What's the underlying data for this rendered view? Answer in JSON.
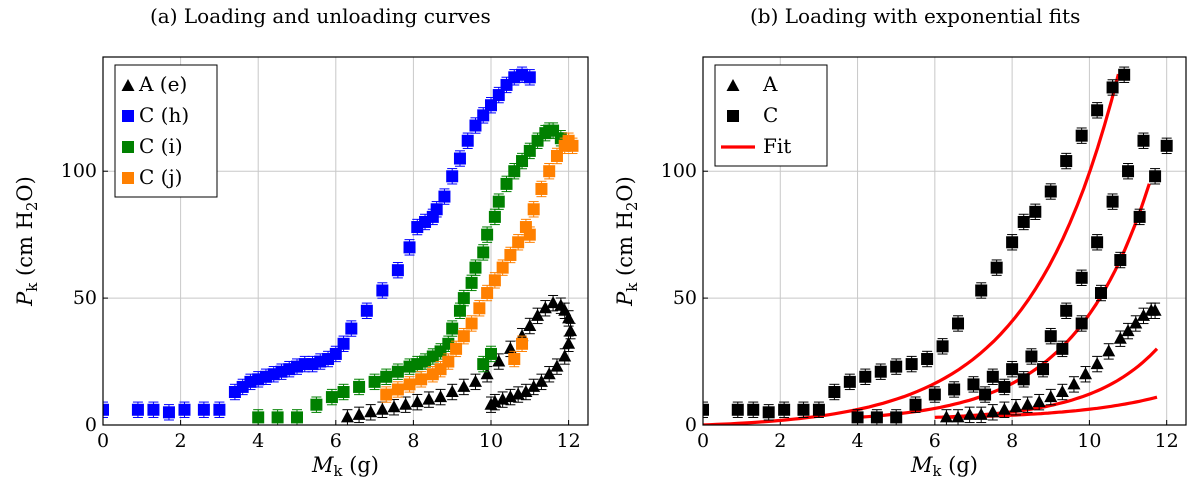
{
  "chart_data": [
    {
      "type": "scatter",
      "title": "(a) Loading and unloading curves",
      "xlabel": "M_k (g)",
      "ylabel": "P_k (cm H2O)",
      "xlim": [
        0,
        12.5
      ],
      "ylim": [
        0,
        145
      ],
      "xticks": [
        "0",
        "2",
        "4",
        "6",
        "8",
        "10",
        "12"
      ],
      "yticks": [
        "0",
        "50",
        "100"
      ],
      "grid": true,
      "error_bars": true,
      "legend_position": "top-left",
      "legend": [
        {
          "label": "A (e)",
          "marker": "triangle",
          "color": "#000000"
        },
        {
          "label": "C (h)",
          "marker": "square",
          "color": "#0000ff"
        },
        {
          "label": "C (i)",
          "marker": "square",
          "color": "#008000"
        },
        {
          "label": "C (j)",
          "marker": "square",
          "color": "#ff8000"
        }
      ],
      "series": [
        {
          "name": "A (e)",
          "marker": "triangle",
          "color": "#000000",
          "x": [
            6.3,
            6.6,
            6.9,
            7.2,
            7.5,
            7.8,
            8.1,
            8.4,
            8.7,
            9.0,
            9.3,
            9.6,
            9.9,
            10.2,
            10.5,
            10.8,
            11.0,
            11.2,
            11.4,
            11.6,
            11.8,
            11.9,
            12.0,
            12.05,
            12.0,
            11.9,
            11.7,
            11.5,
            11.3,
            11.1,
            10.9,
            10.7,
            10.5,
            10.3,
            10.1,
            10.0
          ],
          "y": [
            3,
            4,
            5,
            6,
            7,
            8,
            9,
            10,
            11,
            13,
            15,
            17,
            20,
            25,
            30,
            35,
            39,
            43,
            46,
            48,
            47,
            45,
            42,
            37,
            32,
            27,
            23,
            20,
            17,
            15,
            13,
            12,
            11,
            10,
            9,
            8
          ]
        },
        {
          "name": "C (h)",
          "marker": "square",
          "color": "#0000ff",
          "x": [
            0,
            0.9,
            1.3,
            1.7,
            2.1,
            2.6,
            3.0,
            3.4,
            3.6,
            3.8,
            4.0,
            4.2,
            4.4,
            4.6,
            4.8,
            5.0,
            5.2,
            5.4,
            5.6,
            5.8,
            6.0,
            6.2,
            6.4,
            6.8,
            7.2,
            7.6,
            7.9,
            8.1,
            8.3,
            8.5,
            8.6,
            8.8,
            9.0,
            9.2,
            9.4,
            9.6,
            9.8,
            10.0,
            10.2,
            10.4,
            10.6,
            10.8,
            11.0
          ],
          "y": [
            6,
            6,
            6,
            5,
            6,
            6,
            6,
            13,
            15,
            17,
            18,
            19,
            20,
            21,
            22,
            23,
            24,
            24,
            25,
            26,
            28,
            32,
            38,
            45,
            53,
            61,
            70,
            78,
            80,
            82,
            85,
            90,
            98,
            105,
            112,
            118,
            122,
            126,
            130,
            134,
            137,
            138,
            137
          ]
        },
        {
          "name": "C (i)",
          "marker": "square",
          "color": "#008000",
          "x": [
            4.0,
            4.5,
            5.0,
            5.5,
            5.9,
            6.2,
            6.6,
            7.0,
            7.3,
            7.6,
            7.9,
            8.1,
            8.3,
            8.5,
            8.7,
            8.9,
            9.0,
            9.2,
            9.3,
            9.5,
            9.6,
            9.8,
            9.9,
            10.1,
            10.2,
            10.4,
            10.6,
            10.8,
            11.0,
            11.2,
            11.4,
            11.5,
            11.6,
            11.8,
            10.0,
            9.8
          ],
          "y": [
            3,
            3,
            3,
            8,
            11,
            13,
            15,
            17,
            19,
            21,
            23,
            24,
            25,
            27,
            29,
            32,
            38,
            45,
            50,
            56,
            62,
            68,
            75,
            82,
            88,
            95,
            100,
            104,
            108,
            112,
            115,
            116,
            116,
            113,
            28,
            24
          ]
        },
        {
          "name": "C (j)",
          "marker": "square",
          "color": "#ff8000",
          "x": [
            7.3,
            7.6,
            7.9,
            8.2,
            8.5,
            8.7,
            8.9,
            9.1,
            9.3,
            9.5,
            9.7,
            9.9,
            10.1,
            10.3,
            10.5,
            10.7,
            10.9,
            11.1,
            11.3,
            11.5,
            11.7,
            11.9,
            12.0,
            12.1,
            10.6,
            10.8,
            11.0
          ],
          "y": [
            12,
            14,
            16,
            18,
            20,
            22,
            25,
            30,
            35,
            40,
            46,
            52,
            57,
            62,
            67,
            72,
            78,
            85,
            93,
            100,
            106,
            110,
            112,
            110,
            26,
            32,
            75
          ]
        }
      ]
    },
    {
      "type": "scatter",
      "title": "(b) Loading with exponential fits",
      "xlabel": "M_k (g)",
      "ylabel": "P_k (cm H2O)",
      "xlim": [
        0,
        12.5
      ],
      "ylim": [
        0,
        145
      ],
      "xticks": [
        "0",
        "2",
        "4",
        "6",
        "8",
        "10",
        "12"
      ],
      "yticks": [
        "0",
        "50",
        "100"
      ],
      "grid": true,
      "error_bars": true,
      "legend_position": "top-left",
      "legend": [
        {
          "label": "A",
          "marker": "triangle",
          "color": "#000000"
        },
        {
          "label": "C",
          "marker": "square",
          "color": "#000000"
        },
        {
          "label": "Fit",
          "marker": "line",
          "color": "#ff0000"
        }
      ],
      "series": [
        {
          "name": "A",
          "marker": "triangle",
          "color": "#000000",
          "x": [
            6.3,
            6.6,
            6.9,
            7.2,
            7.5,
            7.8,
            8.1,
            8.4,
            8.7,
            9.0,
            9.3,
            9.6,
            9.9,
            10.2,
            10.5,
            10.8,
            11.0,
            11.2,
            11.4,
            11.6,
            11.7
          ],
          "y": [
            3,
            3,
            4,
            4,
            5,
            6,
            7,
            8,
            9,
            11,
            13,
            16,
            20,
            24,
            29,
            34,
            37,
            40,
            43,
            45,
            45
          ]
        },
        {
          "name": "C",
          "marker": "square",
          "color": "#000000",
          "x": [
            0,
            0.9,
            1.3,
            1.7,
            2.1,
            2.6,
            3.0,
            3.4,
            3.8,
            4.2,
            4.6,
            5.0,
            5.4,
            5.8,
            6.2,
            6.6,
            7.2,
            7.6,
            8.0,
            8.3,
            8.6,
            9.0,
            9.4,
            9.8,
            10.2,
            10.6,
            10.9,
            4.0,
            4.5,
            5.0,
            5.5,
            6.0,
            6.5,
            7.0,
            7.5,
            8.0,
            8.5,
            9.0,
            9.4,
            9.8,
            10.2,
            10.6,
            11.0,
            11.4,
            7.3,
            7.8,
            8.3,
            8.8,
            9.3,
            9.8,
            10.3,
            10.8,
            11.3,
            11.7,
            12.0
          ],
          "y": [
            6,
            6,
            6,
            5,
            6,
            6,
            6,
            13,
            17,
            19,
            21,
            23,
            24,
            26,
            31,
            40,
            53,
            62,
            72,
            80,
            84,
            92,
            104,
            114,
            124,
            133,
            138,
            3,
            3,
            3,
            8,
            12,
            14,
            16,
            19,
            22,
            27,
            35,
            45,
            58,
            72,
            88,
            100,
            112,
            12,
            15,
            18,
            22,
            30,
            40,
            52,
            65,
            82,
            98,
            110
          ]
        }
      ],
      "fits": [
        {
          "name": "Fit",
          "color": "#ff0000",
          "a": 1.3,
          "b": 0.435,
          "x0": 0,
          "x1": 10.75
        },
        {
          "name": "Fit",
          "color": "#ff0000",
          "a": 2.0,
          "b": 0.51,
          "x0": 4.0,
          "x1": 11.55
        },
        {
          "name": "Fit",
          "color": "#ff0000",
          "a": 1.0,
          "b": 0.58,
          "x0": 6.0,
          "x1": 11.75
        },
        {
          "name": "Fit",
          "color": "#ff0000",
          "a": 0.75,
          "b": 0.45,
          "x0": 6.3,
          "x1": 11.75
        }
      ]
    }
  ]
}
